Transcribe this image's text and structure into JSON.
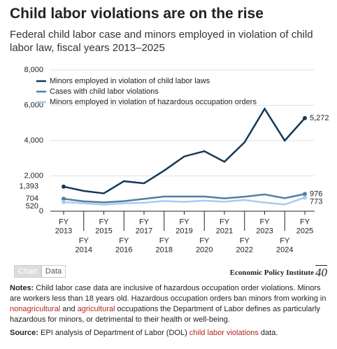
{
  "chart_data": {
    "type": "line",
    "title": "Child labor violations are on the rise",
    "subtitle": "Federal child labor case and minors employed in violation of child labor law, fiscal years 2013–2025",
    "categories": [
      "FY 2013",
      "FY 2014",
      "FY 2015",
      "FY 2016",
      "FY 2017",
      "FY 2018",
      "FY 2019",
      "FY 2020",
      "FY 2021",
      "FY 2022",
      "FY 2023",
      "FY 2024",
      "FY 2025"
    ],
    "series": [
      {
        "name": "Minors employed in violation of child labor laws",
        "color": "#12395b",
        "values": [
          1393,
          1150,
          1010,
          1700,
          1580,
          2300,
          3100,
          3400,
          2800,
          3900,
          5800,
          4000,
          5272
        ],
        "value_labels": [
          "1,393",
          null,
          null,
          null,
          null,
          null,
          null,
          null,
          null,
          null,
          null,
          null,
          "5,272"
        ]
      },
      {
        "name": "Cases with child labor violations",
        "color": "#4d7fa6",
        "values": [
          704,
          560,
          500,
          570,
          700,
          830,
          830,
          830,
          730,
          820,
          950,
          740,
          976
        ],
        "value_labels": [
          "704",
          null,
          null,
          null,
          null,
          null,
          null,
          null,
          null,
          null,
          null,
          null,
          "976"
        ]
      },
      {
        "name": "Minors employed in violation of hazardous occupation orders",
        "color": "#a9cbec",
        "values": [
          520,
          450,
          370,
          450,
          480,
          580,
          530,
          600,
          540,
          640,
          490,
          380,
          773
        ],
        "value_labels": [
          "520",
          null,
          null,
          null,
          null,
          null,
          null,
          null,
          null,
          null,
          null,
          null,
          "773"
        ]
      }
    ],
    "ylim": [
      0,
      8000
    ],
    "yticks": [
      0,
      {
        "value": 2000,
        "label": "2,000"
      },
      {
        "value": 4000,
        "label": "4,000"
      },
      {
        "value": 6000,
        "label": "6,000"
      },
      {
        "value": 8000,
        "label": "8,000"
      }
    ],
    "grid": true,
    "legend": "top-left"
  },
  "tabs": [
    "Chart",
    "Data"
  ],
  "logo": {
    "name": "Economic Policy Institute",
    "badge": "40"
  },
  "notes": {
    "label": "Notes:",
    "parts": [
      "Child labor case data are inclusive of hazardous occupation order violations. Minors are workers less than 18 years old. Hazardous occupation orders ban minors from working in ",
      "nonagricultural",
      " and ",
      "agricultural",
      " occupations the Department of Labor defines as particularly hazardous for minors, or detrimental to their health or well-being."
    ]
  },
  "source": {
    "label": "Source:",
    "parts": [
      "EPI analysis of Department of Labor (DOL) ",
      "child labor violations",
      " data."
    ]
  }
}
